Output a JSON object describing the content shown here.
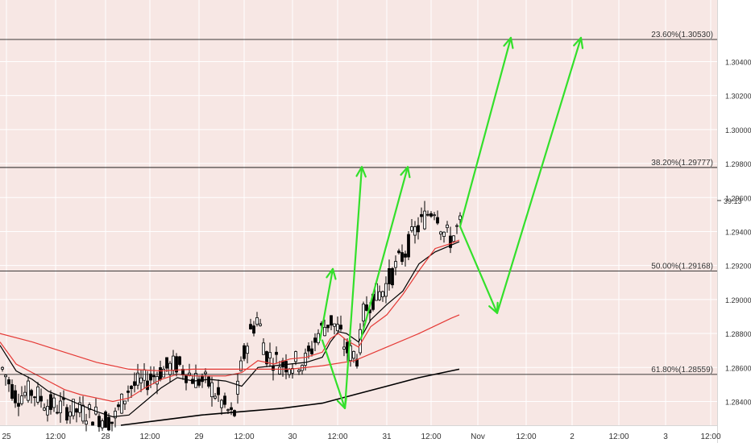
{
  "colors": {
    "background": "#f7e7e4",
    "axis_bg": "#ffffff",
    "grid": "#ffffff",
    "candle": "#000000",
    "ma_black": "#000000",
    "ma_red": "#e53935",
    "arrow": "#33e02b",
    "fib_line": "#000000",
    "axis_text": "#333333"
  },
  "price_badge": "39:13",
  "chart_data": {
    "type": "candlestick",
    "title": "",
    "xlabel": "",
    "ylabel": "",
    "grid": true,
    "x_tick_labels": [
      "25",
      "12:00",
      "28",
      "12:00",
      "29",
      "12:00",
      "30",
      "12:00",
      "31",
      "12:00",
      "Nov",
      "12:00",
      "2",
      "12:00",
      "3",
      "12:00"
    ],
    "y_tick_labels": [
      "1.30400",
      "1.30200",
      "1.30000",
      "1.29800",
      "1.29600",
      "1.29400",
      "1.29200",
      "1.29000",
      "1.28800",
      "1.28600",
      "1.28400"
    ],
    "ylim": [
      1.2826,
      1.3055
    ],
    "fib_levels": [
      {
        "label": "23.60%(1.30530)",
        "value": 1.3053
      },
      {
        "label": "38.20%(1.29777)",
        "value": 1.29777
      },
      {
        "label": "50.00%(1.29168)",
        "value": 1.29168
      },
      {
        "label": "61.80%(1.28559)",
        "value": 1.28559
      }
    ],
    "series": [
      {
        "name": "",
        "type": "ma",
        "color_key": "ma_black",
        "points": [
          [
            0,
            1.2873
          ],
          [
            20,
            1.2858
          ],
          [
            40,
            1.2853
          ],
          [
            60,
            1.2846
          ],
          [
            80,
            1.2842
          ],
          [
            100,
            1.2838
          ],
          [
            120,
            1.2834
          ],
          [
            140,
            1.2831
          ],
          [
            160,
            1.2832
          ],
          [
            180,
            1.284
          ],
          [
            200,
            1.2848
          ],
          [
            220,
            1.2854
          ],
          [
            240,
            1.2852
          ],
          [
            260,
            1.2853
          ],
          [
            280,
            1.2852
          ],
          [
            300,
            1.2849
          ],
          [
            320,
            1.286
          ],
          [
            340,
            1.2861
          ],
          [
            360,
            1.2862
          ],
          [
            380,
            1.2863
          ],
          [
            400,
            1.2866
          ],
          [
            410,
            1.2875
          ],
          [
            420,
            1.2881
          ],
          [
            430,
            1.288
          ],
          [
            445,
            1.2875
          ],
          [
            460,
            1.2888
          ],
          [
            480,
            1.2897
          ],
          [
            500,
            1.2905
          ],
          [
            520,
            1.2921
          ],
          [
            540,
            1.2928
          ],
          [
            560,
            1.2932
          ],
          [
            570,
            1.2934
          ]
        ]
      },
      {
        "name": "",
        "type": "ma",
        "color_key": "ma_red",
        "points": [
          [
            0,
            1.2875
          ],
          [
            20,
            1.2862
          ],
          [
            40,
            1.2857
          ],
          [
            60,
            1.2852
          ],
          [
            80,
            1.2847
          ],
          [
            100,
            1.2844
          ],
          [
            120,
            1.2842
          ],
          [
            140,
            1.284
          ],
          [
            160,
            1.2842
          ],
          [
            180,
            1.2848
          ],
          [
            200,
            1.2853
          ],
          [
            220,
            1.2856
          ],
          [
            240,
            1.2855
          ],
          [
            260,
            1.2855
          ],
          [
            280,
            1.2855
          ],
          [
            300,
            1.2857
          ],
          [
            320,
            1.2864
          ],
          [
            340,
            1.2862
          ],
          [
            360,
            1.2865
          ],
          [
            380,
            1.2866
          ],
          [
            400,
            1.2869
          ],
          [
            410,
            1.2877
          ],
          [
            420,
            1.288
          ],
          [
            430,
            1.2876
          ],
          [
            445,
            1.2872
          ],
          [
            460,
            1.2884
          ],
          [
            480,
            1.2891
          ],
          [
            500,
            1.2903
          ],
          [
            520,
            1.2917
          ],
          [
            540,
            1.293
          ],
          [
            560,
            1.2933
          ],
          [
            570,
            1.2935
          ]
        ]
      },
      {
        "name": "",
        "type": "ma",
        "color_key": "ma_red",
        "points": [
          [
            0,
            1.288
          ],
          [
            40,
            1.2875
          ],
          [
            80,
            1.2869
          ],
          [
            120,
            1.2863
          ],
          [
            160,
            1.2859
          ],
          [
            200,
            1.2858
          ],
          [
            240,
            1.2859
          ],
          [
            280,
            1.2859
          ],
          [
            320,
            1.2859
          ],
          [
            360,
            1.2859
          ],
          [
            400,
            1.2861
          ],
          [
            440,
            1.2864
          ],
          [
            480,
            1.2872
          ],
          [
            520,
            1.288
          ],
          [
            560,
            1.2889
          ],
          [
            570,
            1.2891
          ]
        ]
      },
      {
        "name": "",
        "type": "ma",
        "color_key": "ma_black",
        "points": [
          [
            150,
            1.2826
          ],
          [
            200,
            1.2829
          ],
          [
            250,
            1.2832
          ],
          [
            300,
            1.2834
          ],
          [
            350,
            1.2836
          ],
          [
            400,
            1.2839
          ],
          [
            440,
            1.2844
          ],
          [
            480,
            1.2849
          ],
          [
            520,
            1.2854
          ],
          [
            570,
            1.2859
          ]
        ]
      }
    ],
    "arrows": [
      {
        "from": [
          397,
          1.2876
        ],
        "to": [
          413,
          1.2918
        ]
      },
      {
        "from": [
          400,
          1.2876
        ],
        "to": [
          428,
          1.2836
        ]
      },
      {
        "from": [
          428,
          1.2836
        ],
        "to": [
          449,
          1.2978
        ]
      },
      {
        "from": [
          448,
          1.2877
        ],
        "to": [
          506,
          1.2978
        ]
      },
      {
        "from": [
          571,
          1.2943
        ],
        "to": [
          634,
          1.3054
        ]
      },
      {
        "from": [
          571,
          1.2943
        ],
        "to": [
          617,
          1.2892
        ]
      },
      {
        "from": [
          617,
          1.2892
        ],
        "to": [
          721,
          1.3054
        ]
      }
    ]
  }
}
